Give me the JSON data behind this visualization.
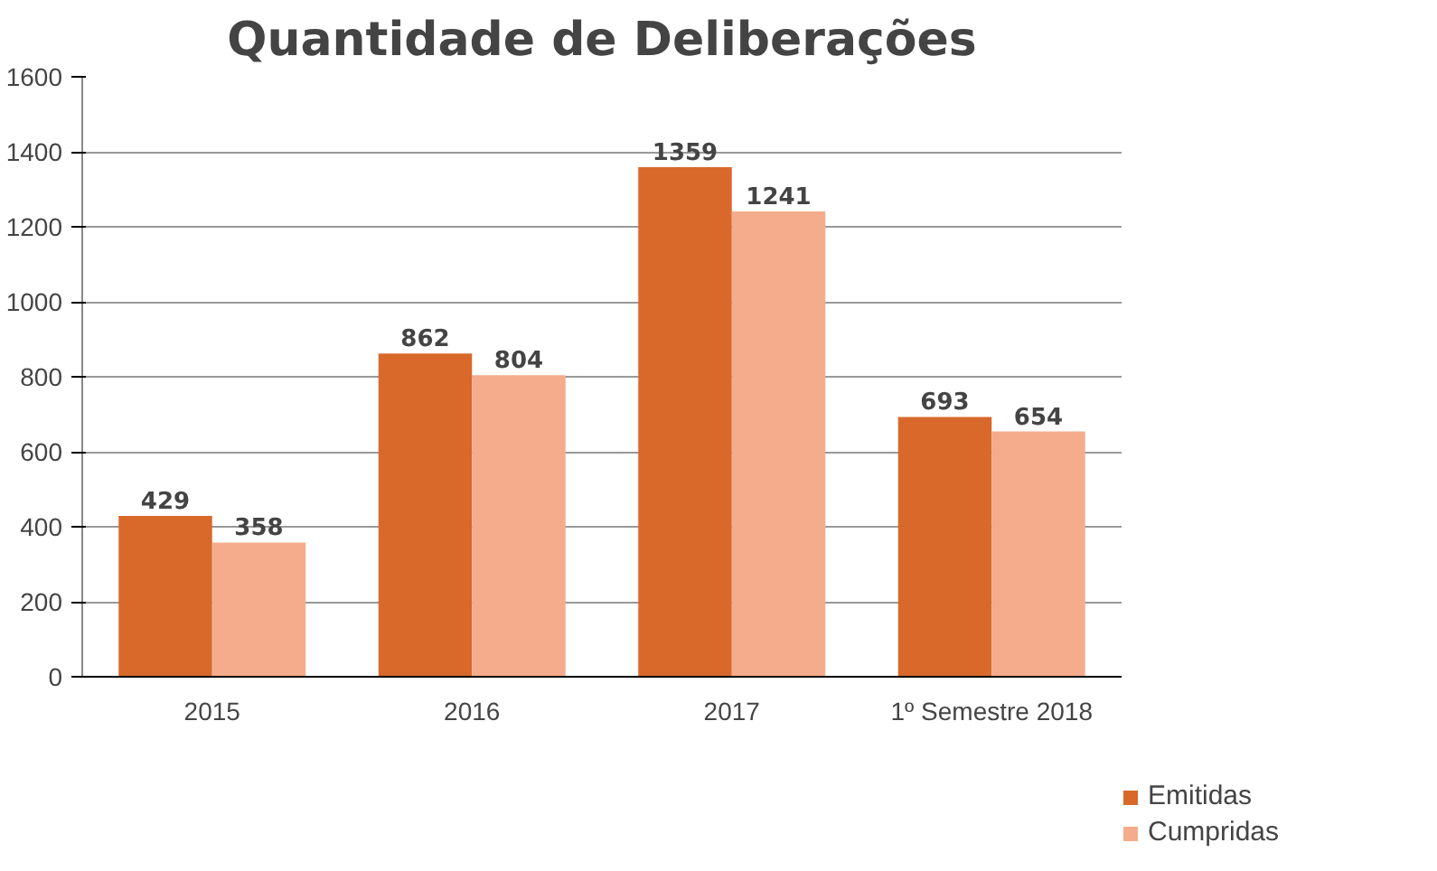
{
  "chart_data": {
    "type": "bar",
    "title": "Quantidade de Deliberações",
    "categories": [
      "2015",
      "2016",
      "2017",
      "1º Semestre 2018"
    ],
    "series": [
      {
        "name": "Emitidas",
        "color": "#d8692b",
        "values": [
          429,
          862,
          1359,
          693
        ]
      },
      {
        "name": "Cumpridas",
        "color": "#f4ac8c",
        "values": [
          358,
          804,
          1241,
          654
        ]
      }
    ],
    "ylim": [
      0,
      1600
    ],
    "yticks": [
      0,
      200,
      400,
      600,
      800,
      1000,
      1200,
      1400,
      1600
    ],
    "grid": "y",
    "legend": "right",
    "data_labels": true
  }
}
